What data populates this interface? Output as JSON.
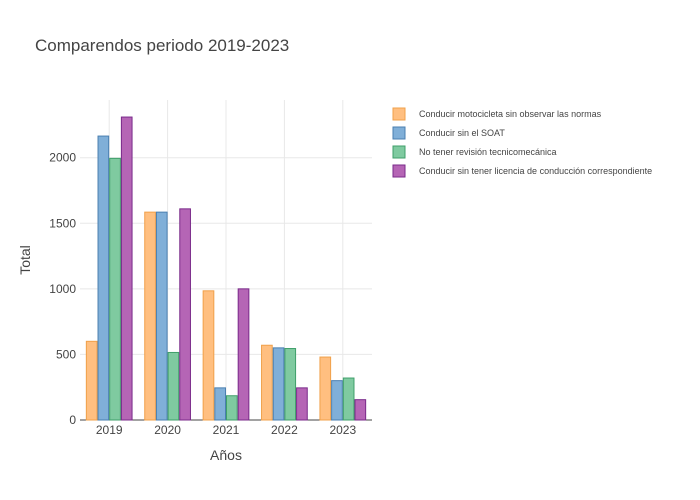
{
  "chart_data": {
    "type": "bar",
    "title": "Comparendos periodo 2019-2023",
    "xlabel": "Años",
    "ylabel": "Total",
    "categories": [
      "2019",
      "2020",
      "2021",
      "2022",
      "2023"
    ],
    "ylim": [
      0,
      2440
    ],
    "yticks": [
      0,
      500,
      1000,
      1500,
      2000
    ],
    "grid": true,
    "legend_position": "top-right",
    "series": [
      {
        "name": "Conducir motocicleta sin observar las normas",
        "values": [
          600,
          1585,
          985,
          570,
          480
        ],
        "color": "#ffbf80",
        "stroke": "#f0a04a"
      },
      {
        "name": "Conducir sin el SOAT",
        "values": [
          2165,
          1585,
          245,
          550,
          300
        ],
        "color": "#80afd8",
        "stroke": "#4a7fb0"
      },
      {
        "name": "No tener revisión tecnicomecánica",
        "values": [
          1995,
          515,
          185,
          545,
          320
        ],
        "color": "#7fcaa0",
        "stroke": "#3f9f6a"
      },
      {
        "name": "Conducir sin tener licencia de conducción correspondiente",
        "values": [
          2310,
          1610,
          1000,
          245,
          155
        ],
        "color": "#b565b5",
        "stroke": "#7a2a8a"
      }
    ]
  }
}
